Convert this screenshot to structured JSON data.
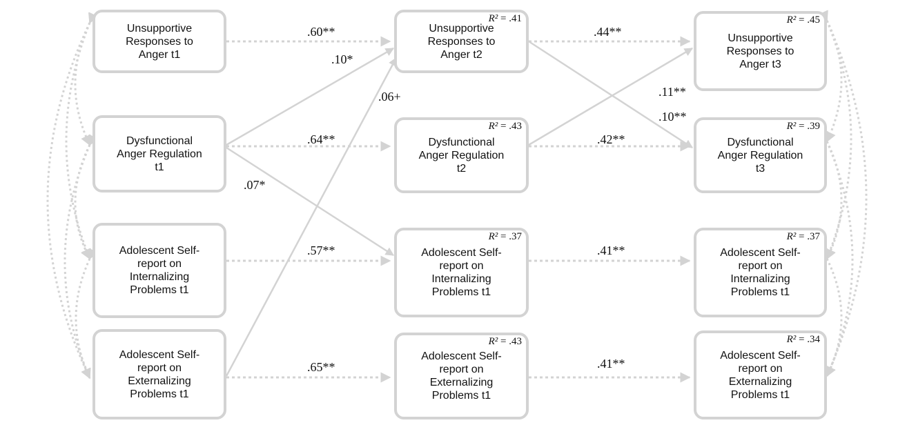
{
  "nodes": {
    "t1": {
      "unsupportive": {
        "label": "Unsupportive\nResponses to\nAnger t1"
      },
      "dysfunctional": {
        "label": "Dysfunctional\nAnger Regulation\nt1"
      },
      "internalizing": {
        "label": "Adolescent Self-\nreport on\nInternalizing\nProblems t1"
      },
      "externalizing": {
        "label": "Adolescent Self-\nreport on\nExternalizing\nProblems t1"
      }
    },
    "t2": {
      "unsupportive": {
        "label": "Unsupportive\nResponses to\nAnger t2",
        "r2": "= .41"
      },
      "dysfunctional": {
        "label": "Dysfunctional\nAnger Regulation\nt2",
        "r2": "= .43"
      },
      "internalizing": {
        "label": "Adolescent Self-\nreport on\nInternalizing\nProblems t1",
        "r2": "= .37"
      },
      "externalizing": {
        "label": "Adolescent Self-\nreport on\nExternalizing\nProblems t1",
        "r2": "= .43"
      }
    },
    "t3": {
      "unsupportive": {
        "label": "Unsupportive\nResponses to\nAnger t3",
        "r2": "= .45"
      },
      "dysfunctional": {
        "label": "Dysfunctional\nAnger Regulation\nt3",
        "r2": "= .39"
      },
      "internalizing": {
        "label": "Adolescent Self-\nreport on\nInternalizing\nProblems t1",
        "r2": "= .37"
      },
      "externalizing": {
        "label": "Adolescent Self-\nreport on\nExternalizing\nProblems t1",
        "r2": "= .34"
      }
    }
  },
  "r2_symbol": "R²",
  "coefficients": {
    "u1_u2": ".60**",
    "u2_u3": ".44**",
    "d1_u2": ".10*",
    "e1_u2": ".06+",
    "d2_u3": ".11**",
    "u2_d3": ".10**",
    "d1_d2": ".64**",
    "d2_d3": ".42**",
    "d1_i2": ".07*",
    "i1_i2": ".57**",
    "i2_i3": ".41**",
    "e1_e2": ".65**",
    "e2_e3": ".41**"
  },
  "colors": {
    "line": "#d3d3d3",
    "text": "#111111"
  }
}
